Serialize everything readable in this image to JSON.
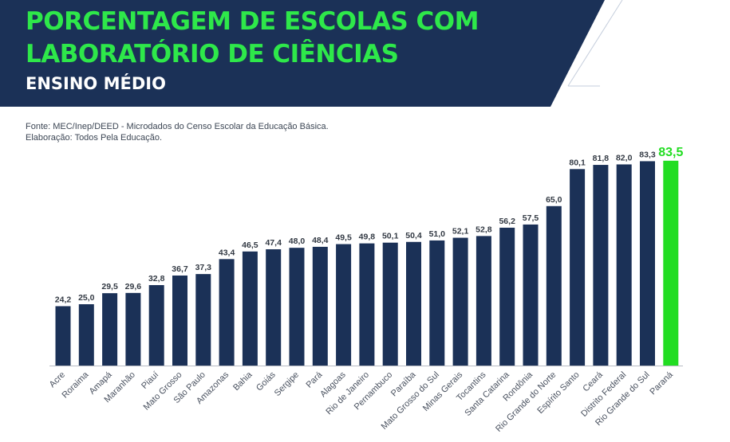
{
  "header": {
    "title_line1": "PORCENTAGEM DE ESCOLAS COM",
    "title_line2": "LABORATÓRIO DE CIÊNCIAS",
    "subtitle": "ENSINO MÉDIO",
    "background_color": "#1b3157",
    "title_color": "#2ee84a"
  },
  "source": {
    "line1": "Fonte: MEC/Inep/DEED - Microdados do Censo Escolar da Educação Básica.",
    "line2": "Elaboração: Todos Pela Educação."
  },
  "chart_data": {
    "type": "bar",
    "title": "PORCENTAGEM DE ESCOLAS COM LABORATÓRIO DE CIÊNCIAS",
    "subtitle": "ENSINO MÉDIO",
    "xlabel": "",
    "ylabel": "",
    "ylim": [
      0,
      100
    ],
    "grid": false,
    "bar_color": "#1b3157",
    "highlight_color": "#22dd22",
    "highlight_category": "Paraná",
    "categories": [
      "Acre",
      "Roraima",
      "Amapá",
      "Maranhão",
      "Piauí",
      "Mato Grosso",
      "São Paulo",
      "Amazonas",
      "Bahia",
      "Goiás",
      "Sergipe",
      "Pará",
      "Alagoas",
      "Rio de Janeiro",
      "Pernambuco",
      "Paraíba",
      "Mato Grosso do Sul",
      "Minas Gerais",
      "Tocantins",
      "Santa Catarina",
      "Rondônia",
      "Rio Grande do Norte",
      "Espírito Santo",
      "Ceará",
      "Distrito Federal",
      "Rio Grande do Sul",
      "Paraná"
    ],
    "values": [
      24.2,
      25.0,
      29.5,
      29.6,
      32.8,
      36.7,
      37.3,
      43.4,
      46.5,
      47.4,
      48.0,
      48.4,
      49.5,
      49.8,
      50.1,
      50.4,
      51.0,
      52.1,
      52.8,
      56.2,
      57.5,
      65.0,
      80.1,
      81.8,
      82.0,
      83.3,
      83.5
    ],
    "value_labels": [
      "24,2",
      "25,0",
      "29,5",
      "29,6",
      "32,8",
      "36,7",
      "37,3",
      "43,4",
      "46,5",
      "47,4",
      "48,0",
      "48,4",
      "49,5",
      "49,8",
      "50,1",
      "50,4",
      "51,0",
      "52,1",
      "52,8",
      "56,2",
      "57,5",
      "65,0",
      "80,1",
      "81,8",
      "82,0",
      "83,3",
      "83,5"
    ]
  }
}
